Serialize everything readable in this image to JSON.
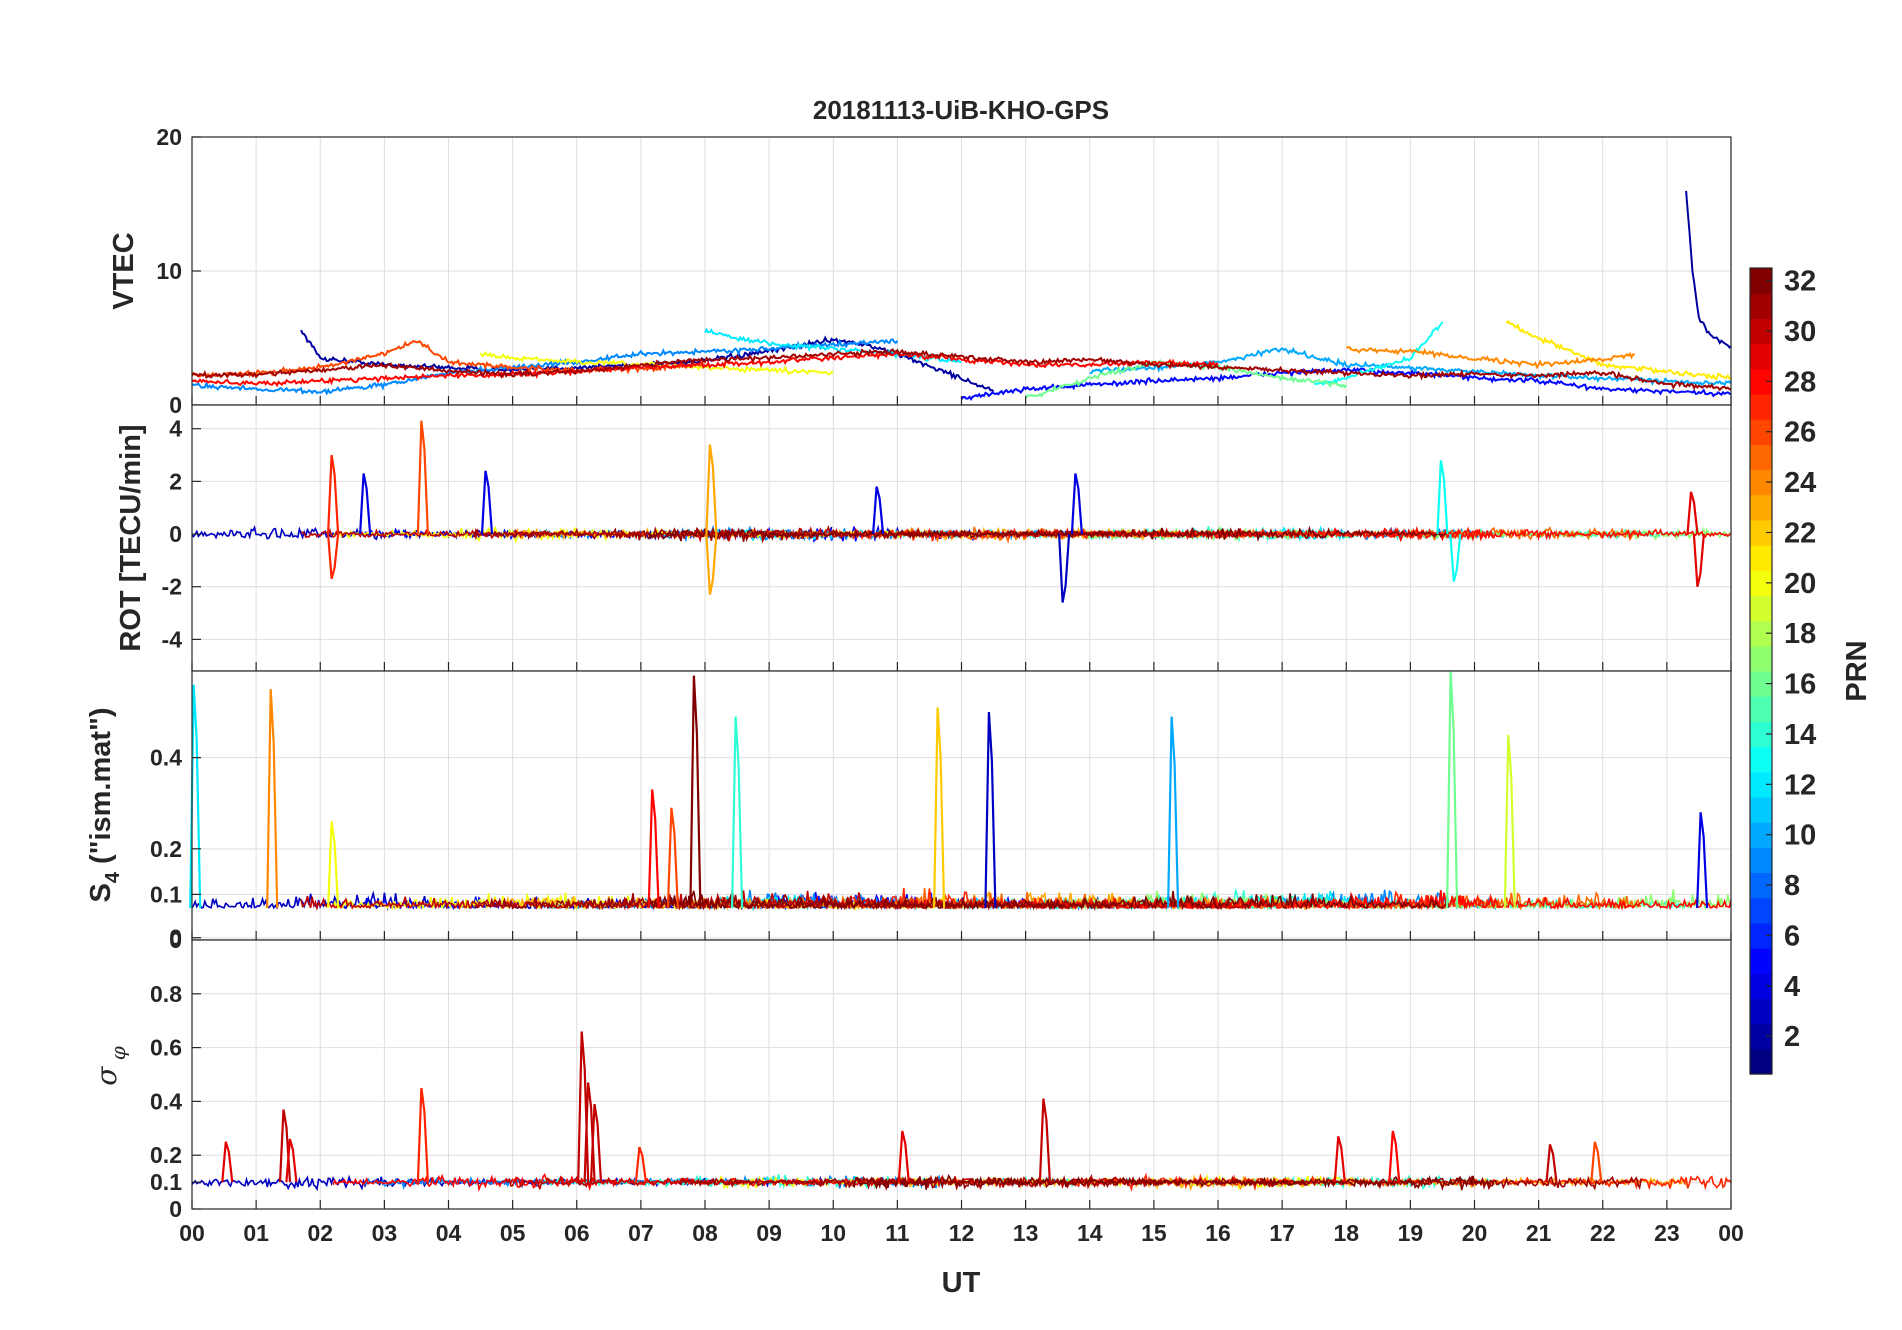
{
  "title": "20181113-UiB-KHO-GPS",
  "chart_data": [
    {
      "type": "line",
      "panel": "vtec",
      "ylabel": "VTEC",
      "ylim": [
        0,
        20
      ],
      "yticks": [
        "0",
        "10",
        "20"
      ],
      "xlim": [
        0,
        24
      ],
      "grid": true,
      "series_summary": "multiple PRN traces, mostly 1-5 TECU",
      "series": [
        {
          "prn": 2,
          "x": [
            1.7,
            2.0,
            3.0,
            4.0,
            5.0,
            6.0,
            7.0,
            8.0,
            9.0,
            10.0,
            10.5,
            11.0,
            12.0,
            12.5
          ],
          "y": [
            5.6,
            3.5,
            3.0,
            2.8,
            2.6,
            2.8,
            3.0,
            3.3,
            4.0,
            4.9,
            4.5,
            3.8,
            2.0,
            1.0
          ]
        },
        {
          "prn": 2,
          "x": [
            23.3,
            23.4,
            23.5,
            23.7,
            24.0
          ],
          "y": [
            16.0,
            10.0,
            6.5,
            5.0,
            4.4
          ]
        },
        {
          "prn": 5,
          "x": [
            12.0,
            13.0,
            14.0,
            15.0,
            16.0,
            17.0,
            18.0,
            19.0,
            20.0,
            21.0,
            22.0,
            23.0,
            24.0
          ],
          "y": [
            0.5,
            1.2,
            1.5,
            1.8,
            2.0,
            2.4,
            2.6,
            2.4,
            2.0,
            1.8,
            1.2,
            1.0,
            0.8
          ]
        },
        {
          "prn": 9,
          "x": [
            0,
            1,
            2,
            3,
            4,
            5,
            6,
            7,
            8,
            9,
            10,
            11
          ],
          "y": [
            1.5,
            1.2,
            1.0,
            1.5,
            2.4,
            2.8,
            3.2,
            3.8,
            4.0,
            4.2,
            4.5,
            4.8
          ]
        },
        {
          "prn": 10,
          "x": [
            14,
            15,
            16,
            17,
            18,
            19,
            20,
            21,
            22,
            23,
            24
          ],
          "y": [
            2.5,
            2.8,
            3.2,
            4.2,
            3.0,
            2.8,
            2.5,
            2.2,
            2.0,
            1.8,
            1.6
          ]
        },
        {
          "prn": 12,
          "x": [
            8,
            8.5,
            9,
            10,
            11,
            12
          ],
          "y": [
            5.5,
            5.0,
            4.6,
            4.2,
            3.8,
            3.2
          ]
        },
        {
          "prn": 13,
          "x": [
            17.5,
            18,
            18.5,
            19,
            19.5
          ],
          "y": [
            1.5,
            2.0,
            2.8,
            3.5,
            6.2
          ]
        },
        {
          "prn": 16,
          "x": [
            13,
            14,
            15,
            16,
            17,
            18
          ],
          "y": [
            0.5,
            2.0,
            3.2,
            2.8,
            2.0,
            1.5
          ]
        },
        {
          "prn": 20,
          "x": [
            4.5,
            5,
            6,
            7,
            8,
            9,
            10
          ],
          "y": [
            3.8,
            3.5,
            3.2,
            3.0,
            2.8,
            2.6,
            2.4
          ]
        },
        {
          "prn": 21,
          "x": [
            20.5,
            21,
            21.5,
            22,
            23,
            24
          ],
          "y": [
            6.2,
            5.0,
            4.0,
            3.0,
            2.5,
            2.0
          ]
        },
        {
          "prn": 24,
          "x": [
            18,
            19,
            20,
            21,
            22,
            22.5
          ],
          "y": [
            4.2,
            4.0,
            3.5,
            3.0,
            3.4,
            3.8
          ]
        },
        {
          "prn": 26,
          "x": [
            0,
            1,
            2,
            3,
            3.5,
            4,
            5,
            6,
            7,
            8
          ],
          "y": [
            2.2,
            2.4,
            2.8,
            3.8,
            4.8,
            3.2,
            2.8,
            2.6,
            2.7,
            3.0
          ]
        },
        {
          "prn": 28,
          "x": [
            0,
            1,
            2,
            3,
            4,
            5,
            6,
            7,
            8,
            9,
            10,
            11,
            12,
            13,
            14,
            15,
            16
          ],
          "y": [
            1.8,
            1.6,
            1.8,
            2.0,
            2.2,
            2.3,
            2.5,
            2.8,
            3.0,
            3.2,
            3.5,
            3.8,
            3.4,
            3.0,
            3.0,
            3.2,
            3.0
          ]
        },
        {
          "prn": 31,
          "x": [
            0,
            1,
            2,
            3,
            4,
            5,
            6,
            7,
            8,
            9,
            10,
            11,
            12,
            13,
            14,
            15,
            16,
            17,
            18,
            19,
            20,
            21,
            22,
            23,
            24
          ],
          "y": [
            2.2,
            2.3,
            2.6,
            3.0,
            2.5,
            2.3,
            2.5,
            3.0,
            3.4,
            3.5,
            3.8,
            4.0,
            3.6,
            3.2,
            3.4,
            3.0,
            2.8,
            2.6,
            2.4,
            2.2,
            2.3,
            2.2,
            2.4,
            1.6,
            1.2
          ]
        }
      ]
    },
    {
      "type": "line",
      "panel": "rot",
      "ylabel": "ROT [TECU/min]",
      "ylim": [
        -5.2,
        4.9
      ],
      "yticks": [
        "-4",
        "-2",
        "0",
        "2",
        "4"
      ],
      "xlim": [
        0,
        24
      ],
      "grid": true,
      "baseline": 0,
      "spikes": [
        {
          "prn": 27,
          "x": 2.2,
          "y": 3.0
        },
        {
          "prn": 27,
          "x": 2.2,
          "y": -1.7
        },
        {
          "prn": 4,
          "x": 2.7,
          "y": 2.3
        },
        {
          "prn": 26,
          "x": 3.6,
          "y": 4.3
        },
        {
          "prn": 4,
          "x": 4.6,
          "y": 2.4
        },
        {
          "prn": 23,
          "x": 8.1,
          "y": 3.4
        },
        {
          "prn": 23,
          "x": 8.1,
          "y": -2.3
        },
        {
          "prn": 4,
          "x": 10.7,
          "y": 1.8
        },
        {
          "prn": 3,
          "x": 13.6,
          "y": -2.6
        },
        {
          "prn": 4,
          "x": 13.8,
          "y": 2.3
        },
        {
          "prn": 13,
          "x": 19.5,
          "y": 2.8
        },
        {
          "prn": 13,
          "x": 19.7,
          "y": -1.8
        },
        {
          "prn": 29,
          "x": 23.4,
          "y": 1.6
        },
        {
          "prn": 29,
          "x": 23.5,
          "y": -2.0
        }
      ]
    },
    {
      "type": "line",
      "panel": "s4",
      "ylabel": "S4 (\"ism.mat\")",
      "ylim": [
        0,
        0.59
      ],
      "yticks": [
        "0",
        "0",
        "0.1",
        "0.2",
        "0.4"
      ],
      "xlim": [
        0,
        24
      ],
      "grid": true,
      "baseline": 0.07,
      "spikes": [
        {
          "prn": 12,
          "x": 0.05,
          "y": 0.56
        },
        {
          "prn": 24,
          "x": 1.25,
          "y": 0.55
        },
        {
          "prn": 20,
          "x": 2.2,
          "y": 0.26
        },
        {
          "prn": 28,
          "x": 7.2,
          "y": 0.33
        },
        {
          "prn": 26,
          "x": 7.5,
          "y": 0.29
        },
        {
          "prn": 32,
          "x": 7.85,
          "y": 0.58
        },
        {
          "prn": 14,
          "x": 8.5,
          "y": 0.49
        },
        {
          "prn": 22,
          "x": 11.65,
          "y": 0.51
        },
        {
          "prn": 3,
          "x": 12.45,
          "y": 0.5
        },
        {
          "prn": 10,
          "x": 15.3,
          "y": 0.49
        },
        {
          "prn": 16,
          "x": 19.65,
          "y": 0.59
        },
        {
          "prn": 19,
          "x": 20.55,
          "y": 0.45
        },
        {
          "prn": 4,
          "x": 23.55,
          "y": 0.28
        }
      ]
    },
    {
      "type": "line",
      "panel": "sigma_phi",
      "ylabel": "σ φ",
      "ylim": [
        0,
        1.0
      ],
      "yticks": [
        "0",
        "0.1",
        "0.2",
        "0.4",
        "0.6",
        "0.8"
      ],
      "xlim": [
        0,
        24
      ],
      "grid": true,
      "baseline": 0.1,
      "spikes": [
        {
          "prn": 29,
          "x": 0.55,
          "y": 0.25
        },
        {
          "prn": 30,
          "x": 1.45,
          "y": 0.37
        },
        {
          "prn": 29,
          "x": 1.55,
          "y": 0.26
        },
        {
          "prn": 27,
          "x": 3.6,
          "y": 0.45
        },
        {
          "prn": 30,
          "x": 6.1,
          "y": 0.66
        },
        {
          "prn": 30,
          "x": 6.2,
          "y": 0.47
        },
        {
          "prn": 30,
          "x": 6.3,
          "y": 0.39
        },
        {
          "prn": 27,
          "x": 7.0,
          "y": 0.23
        },
        {
          "prn": 29,
          "x": 11.1,
          "y": 0.29
        },
        {
          "prn": 30,
          "x": 13.3,
          "y": 0.41
        },
        {
          "prn": 29,
          "x": 17.9,
          "y": 0.27
        },
        {
          "prn": 28,
          "x": 18.75,
          "y": 0.29
        },
        {
          "prn": 30,
          "x": 21.2,
          "y": 0.24
        },
        {
          "prn": 26,
          "x": 21.9,
          "y": 0.25
        }
      ]
    }
  ],
  "x_axis": {
    "label": "UT",
    "ticks": [
      "00",
      "01",
      "02",
      "03",
      "04",
      "05",
      "06",
      "07",
      "08",
      "09",
      "10",
      "11",
      "12",
      "13",
      "14",
      "15",
      "16",
      "17",
      "18",
      "19",
      "20",
      "21",
      "22",
      "23",
      "00"
    ]
  },
  "colorbar": {
    "label": "PRN",
    "min": 1,
    "max": 32,
    "colormap": "jet",
    "ticks": [
      2,
      4,
      6,
      8,
      10,
      12,
      14,
      16,
      18,
      20,
      22,
      24,
      26,
      28,
      30,
      32
    ],
    "tick_labels": [
      "2",
      "4",
      "6",
      "8",
      "10",
      "12",
      "14",
      "16",
      "18",
      "20",
      "22",
      "24",
      "26",
      "28",
      "30",
      "32"
    ]
  }
}
